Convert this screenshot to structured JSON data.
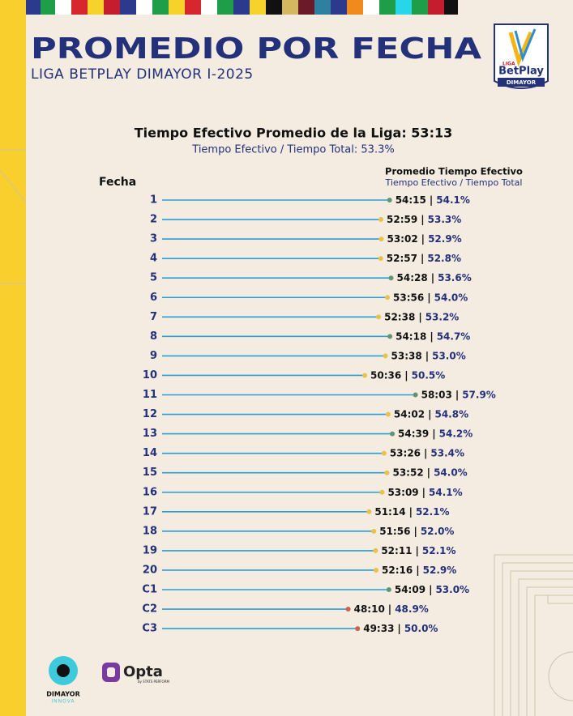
{
  "header": {
    "title": "PROMEDIO POR FECHA",
    "subtitle": "LIGA BETPLAY DIMAYOR I-2025",
    "logo": {
      "top": "LIGA",
      "brand": "BetPlay",
      "bottom": "DIMAYOR"
    }
  },
  "chart_data": {
    "type": "lollipop",
    "title": "Tiempo Efectivo Promedio de la Liga: 53:13",
    "subtitle": "Tiempo Efectivo / Tiempo Total: 53.3%",
    "category_label": "Fecha",
    "value_label": "Promedio Tiempo Efectivo",
    "ratio_label": "Tiempo Efectivo / Tiempo Total",
    "separator": "|",
    "categories": [
      "1",
      "2",
      "3",
      "4",
      "5",
      "6",
      "7",
      "8",
      "9",
      "10",
      "11",
      "12",
      "13",
      "14",
      "15",
      "16",
      "17",
      "18",
      "19",
      "20",
      "C1",
      "C2",
      "C3"
    ],
    "values": [
      54.25,
      52.9833,
      53.0333,
      52.95,
      54.4667,
      53.9333,
      52.6333,
      54.3,
      53.6333,
      50.6,
      58.05,
      54.0333,
      54.65,
      53.4333,
      53.8667,
      53.15,
      51.2333,
      51.9333,
      52.1833,
      52.2667,
      54.15,
      48.1667,
      49.55
    ],
    "value_labels": [
      "54:15",
      "52:59",
      "53:02",
      "52:57",
      "54:28",
      "53:56",
      "52:38",
      "54:18",
      "53:38",
      "50:36",
      "58:03",
      "54:02",
      "54:39",
      "53:26",
      "53:52",
      "53:09",
      "51:14",
      "51:56",
      "52:11",
      "52:16",
      "54:09",
      "48:10",
      "49:33"
    ],
    "ratios": [
      54.1,
      53.3,
      52.9,
      52.8,
      53.6,
      54.0,
      53.2,
      54.7,
      53.0,
      50.5,
      57.9,
      54.8,
      54.2,
      53.4,
      54.0,
      54.1,
      52.1,
      52.0,
      52.1,
      52.9,
      53.0,
      48.9,
      50.0
    ],
    "ratio_labels": [
      "54.1%",
      "53.3%",
      "52.9%",
      "52.8%",
      "53.6%",
      "54.0%",
      "53.2%",
      "54.7%",
      "53.0%",
      "50.5%",
      "57.9%",
      "54.8%",
      "54.2%",
      "53.4%",
      "54.0%",
      "54.1%",
      "52.1%",
      "52.0%",
      "52.1%",
      "52.9%",
      "53.0%",
      "48.9%",
      "50.0%"
    ],
    "colors": [
      "#5e9677",
      "#e8c24a",
      "#e8c24a",
      "#e8c24a",
      "#5e9677",
      "#e8c24a",
      "#e8c24a",
      "#5e9677",
      "#e8c24a",
      "#e8c24a",
      "#5e9677",
      "#e8c24a",
      "#5e9677",
      "#e8c24a",
      "#e8c24a",
      "#e8c24a",
      "#e8c24a",
      "#e8c24a",
      "#e8c24a",
      "#e8c24a",
      "#5e9677",
      "#d0604e",
      "#d0604e"
    ],
    "line_color": "#2a9fd6"
  },
  "footer": {
    "dimayor": "DIMAYOR",
    "innova": "INNOVA",
    "opta": "Opta",
    "opta_sub": "by STATS PERFORM"
  }
}
